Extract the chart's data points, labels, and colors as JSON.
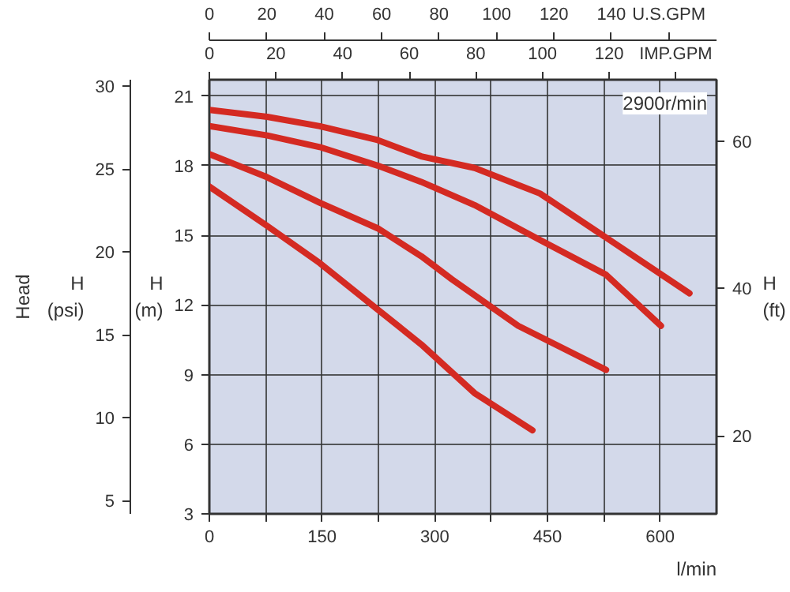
{
  "chart_data": {
    "type": "line",
    "xlabel": "l/min",
    "ylabel": "H (m)",
    "y2label": "H (psi)",
    "y3label": "H (ft)",
    "annotations": [
      "Head",
      "2900r/min",
      "0",
      "20",
      "40",
      "60",
      "80",
      "100",
      "120",
      "IMP.GPM"
    ],
    "xlim": [
      0,
      675
    ],
    "xticks": [
      0,
      {
        "value": 75,
        "label": null
      },
      150,
      {
        "value": 225,
        "label": null
      },
      300,
      {
        "value": 375,
        "label": null
      },
      450,
      {
        "value": 525,
        "label": null
      },
      600
    ],
    "ylim": [
      3,
      21.7
    ],
    "yticks": [
      3,
      6,
      9,
      12,
      15,
      18,
      21
    ],
    "y2lim": [
      4.2,
      30.4
    ],
    "y2ticks": [
      5,
      10,
      15,
      20,
      25,
      30
    ],
    "y3lim": [
      9.4,
      68.3
    ],
    "y3ticks": [
      20,
      40,
      60
    ],
    "x2lim": [
      0,
      176.6
    ],
    "x2ticks": [
      0,
      20,
      40,
      60,
      80,
      100,
      120,
      140,
      {
        "value": 160,
        "label": "U.S.GPM"
      }
    ],
    "grid": true,
    "series": [
      {
        "color": "#d42a22",
        "x": [
          0,
          77,
          147,
          224,
          282,
          353,
          440,
          528,
          639
        ],
        "values": [
          20.4,
          20.1,
          19.7,
          19.1,
          18.4,
          17.9,
          16.8,
          14.9,
          12.5
        ]
      },
      {
        "color": "#d42a22",
        "x": [
          0,
          77,
          147,
          224,
          282,
          353,
          440,
          528,
          601
        ],
        "values": [
          19.7,
          19.3,
          18.8,
          18.0,
          17.3,
          16.3,
          14.8,
          13.3,
          11.1
        ]
      },
      {
        "color": "#d42a22",
        "x": [
          0,
          77,
          147,
          224,
          282,
          323,
          411,
          528
        ],
        "values": [
          18.5,
          17.5,
          16.4,
          15.3,
          14.1,
          13.1,
          11.1,
          9.2
        ]
      },
      {
        "color": "#d42a22",
        "x": [
          0,
          77,
          147,
          224,
          282,
          353,
          430
        ],
        "values": [
          17.1,
          15.4,
          13.8,
          11.8,
          10.3,
          8.2,
          6.6
        ]
      }
    ]
  }
}
